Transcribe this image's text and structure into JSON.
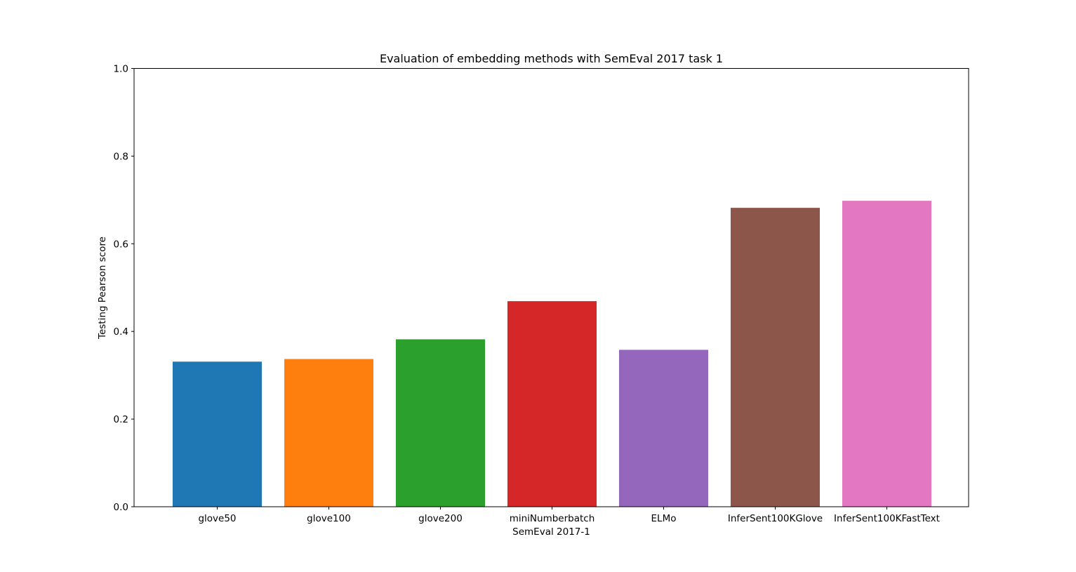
{
  "chart_data": {
    "type": "bar",
    "title": "Evaluation of embedding methods with SemEval 2017 task 1",
    "xlabel": "SemEval 2017-1",
    "ylabel": "Testing Pearson score",
    "ylim": [
      0,
      1.0
    ],
    "yticks": [
      "0.0",
      "0.2",
      "0.4",
      "0.6",
      "0.8",
      "1.0"
    ],
    "grid": false,
    "legend": "none",
    "categories": [
      "glove50",
      "glove100",
      "glove200",
      "miniNumberbatch",
      "ELMo",
      "InferSent100KGlove",
      "InferSent100KFastText"
    ],
    "values": [
      0.331,
      0.337,
      0.382,
      0.469,
      0.358,
      0.682,
      0.698
    ],
    "colors": [
      "#1f77b4",
      "#ff7f0e",
      "#2ca02c",
      "#d62728",
      "#9467bd",
      "#8c564b",
      "#e377c2"
    ]
  }
}
